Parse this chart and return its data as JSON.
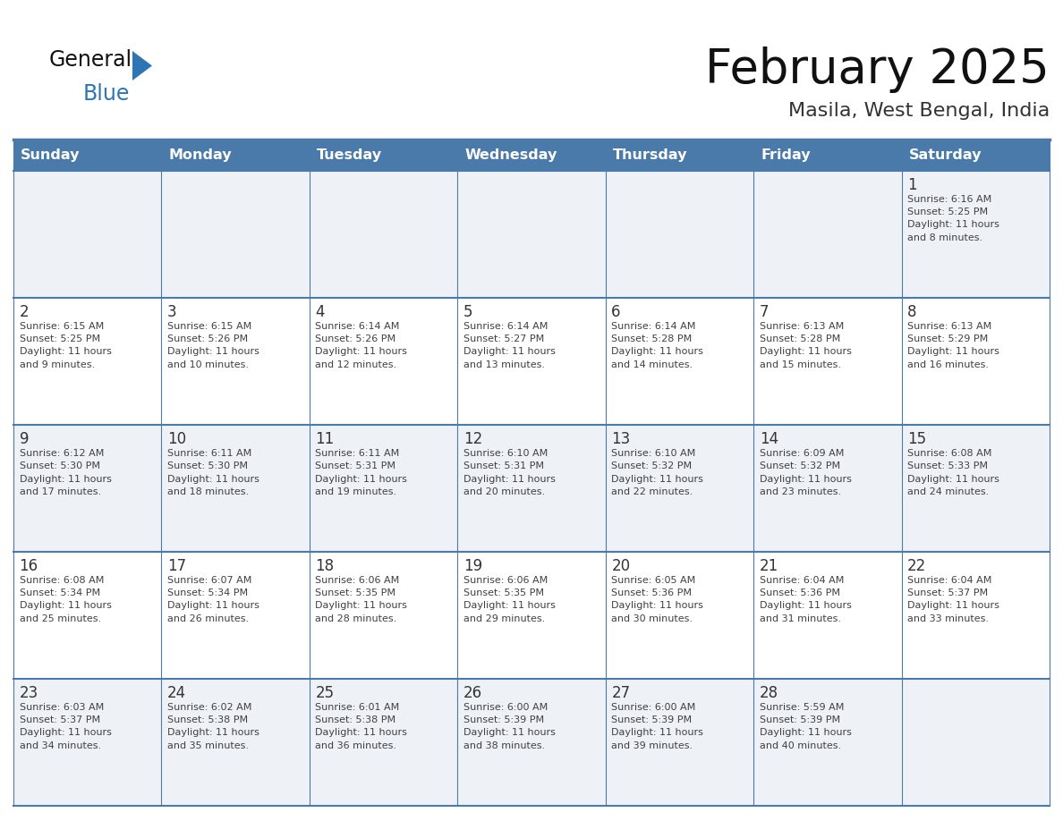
{
  "title": "February 2025",
  "subtitle": "Masila, West Bengal, India",
  "header_bg": "#4a7aaa",
  "header_text": "#ffffff",
  "row_bg_odd": "#eef2f7",
  "row_bg_even": "#ffffff",
  "border_color": "#4a7aaa",
  "day_headers": [
    "Sunday",
    "Monday",
    "Tuesday",
    "Wednesday",
    "Thursday",
    "Friday",
    "Saturday"
  ],
  "text_color": "#404040",
  "day_number_color": "#333333",
  "title_color": "#111111",
  "subtitle_color": "#333333",
  "logo_general_color": "#111111",
  "logo_blue_color": "#2e75b6",
  "logo_triangle_color": "#2e75b6",
  "calendar_data": {
    "1": {
      "day": 1,
      "col": 6,
      "row": 0,
      "sunrise": "6:16 AM",
      "sunset": "5:25 PM",
      "daylight_l1": "Daylight: 11 hours",
      "daylight_l2": "and 8 minutes."
    },
    "2": {
      "day": 2,
      "col": 0,
      "row": 1,
      "sunrise": "6:15 AM",
      "sunset": "5:25 PM",
      "daylight_l1": "Daylight: 11 hours",
      "daylight_l2": "and 9 minutes."
    },
    "3": {
      "day": 3,
      "col": 1,
      "row": 1,
      "sunrise": "6:15 AM",
      "sunset": "5:26 PM",
      "daylight_l1": "Daylight: 11 hours",
      "daylight_l2": "and 10 minutes."
    },
    "4": {
      "day": 4,
      "col": 2,
      "row": 1,
      "sunrise": "6:14 AM",
      "sunset": "5:26 PM",
      "daylight_l1": "Daylight: 11 hours",
      "daylight_l2": "and 12 minutes."
    },
    "5": {
      "day": 5,
      "col": 3,
      "row": 1,
      "sunrise": "6:14 AM",
      "sunset": "5:27 PM",
      "daylight_l1": "Daylight: 11 hours",
      "daylight_l2": "and 13 minutes."
    },
    "6": {
      "day": 6,
      "col": 4,
      "row": 1,
      "sunrise": "6:14 AM",
      "sunset": "5:28 PM",
      "daylight_l1": "Daylight: 11 hours",
      "daylight_l2": "and 14 minutes."
    },
    "7": {
      "day": 7,
      "col": 5,
      "row": 1,
      "sunrise": "6:13 AM",
      "sunset": "5:28 PM",
      "daylight_l1": "Daylight: 11 hours",
      "daylight_l2": "and 15 minutes."
    },
    "8": {
      "day": 8,
      "col": 6,
      "row": 1,
      "sunrise": "6:13 AM",
      "sunset": "5:29 PM",
      "daylight_l1": "Daylight: 11 hours",
      "daylight_l2": "and 16 minutes."
    },
    "9": {
      "day": 9,
      "col": 0,
      "row": 2,
      "sunrise": "6:12 AM",
      "sunset": "5:30 PM",
      "daylight_l1": "Daylight: 11 hours",
      "daylight_l2": "and 17 minutes."
    },
    "10": {
      "day": 10,
      "col": 1,
      "row": 2,
      "sunrise": "6:11 AM",
      "sunset": "5:30 PM",
      "daylight_l1": "Daylight: 11 hours",
      "daylight_l2": "and 18 minutes."
    },
    "11": {
      "day": 11,
      "col": 2,
      "row": 2,
      "sunrise": "6:11 AM",
      "sunset": "5:31 PM",
      "daylight_l1": "Daylight: 11 hours",
      "daylight_l2": "and 19 minutes."
    },
    "12": {
      "day": 12,
      "col": 3,
      "row": 2,
      "sunrise": "6:10 AM",
      "sunset": "5:31 PM",
      "daylight_l1": "Daylight: 11 hours",
      "daylight_l2": "and 20 minutes."
    },
    "13": {
      "day": 13,
      "col": 4,
      "row": 2,
      "sunrise": "6:10 AM",
      "sunset": "5:32 PM",
      "daylight_l1": "Daylight: 11 hours",
      "daylight_l2": "and 22 minutes."
    },
    "14": {
      "day": 14,
      "col": 5,
      "row": 2,
      "sunrise": "6:09 AM",
      "sunset": "5:32 PM",
      "daylight_l1": "Daylight: 11 hours",
      "daylight_l2": "and 23 minutes."
    },
    "15": {
      "day": 15,
      "col": 6,
      "row": 2,
      "sunrise": "6:08 AM",
      "sunset": "5:33 PM",
      "daylight_l1": "Daylight: 11 hours",
      "daylight_l2": "and 24 minutes."
    },
    "16": {
      "day": 16,
      "col": 0,
      "row": 3,
      "sunrise": "6:08 AM",
      "sunset": "5:34 PM",
      "daylight_l1": "Daylight: 11 hours",
      "daylight_l2": "and 25 minutes."
    },
    "17": {
      "day": 17,
      "col": 1,
      "row": 3,
      "sunrise": "6:07 AM",
      "sunset": "5:34 PM",
      "daylight_l1": "Daylight: 11 hours",
      "daylight_l2": "and 26 minutes."
    },
    "18": {
      "day": 18,
      "col": 2,
      "row": 3,
      "sunrise": "6:06 AM",
      "sunset": "5:35 PM",
      "daylight_l1": "Daylight: 11 hours",
      "daylight_l2": "and 28 minutes."
    },
    "19": {
      "day": 19,
      "col": 3,
      "row": 3,
      "sunrise": "6:06 AM",
      "sunset": "5:35 PM",
      "daylight_l1": "Daylight: 11 hours",
      "daylight_l2": "and 29 minutes."
    },
    "20": {
      "day": 20,
      "col": 4,
      "row": 3,
      "sunrise": "6:05 AM",
      "sunset": "5:36 PM",
      "daylight_l1": "Daylight: 11 hours",
      "daylight_l2": "and 30 minutes."
    },
    "21": {
      "day": 21,
      "col": 5,
      "row": 3,
      "sunrise": "6:04 AM",
      "sunset": "5:36 PM",
      "daylight_l1": "Daylight: 11 hours",
      "daylight_l2": "and 31 minutes."
    },
    "22": {
      "day": 22,
      "col": 6,
      "row": 3,
      "sunrise": "6:04 AM",
      "sunset": "5:37 PM",
      "daylight_l1": "Daylight: 11 hours",
      "daylight_l2": "and 33 minutes."
    },
    "23": {
      "day": 23,
      "col": 0,
      "row": 4,
      "sunrise": "6:03 AM",
      "sunset": "5:37 PM",
      "daylight_l1": "Daylight: 11 hours",
      "daylight_l2": "and 34 minutes."
    },
    "24": {
      "day": 24,
      "col": 1,
      "row": 4,
      "sunrise": "6:02 AM",
      "sunset": "5:38 PM",
      "daylight_l1": "Daylight: 11 hours",
      "daylight_l2": "and 35 minutes."
    },
    "25": {
      "day": 25,
      "col": 2,
      "row": 4,
      "sunrise": "6:01 AM",
      "sunset": "5:38 PM",
      "daylight_l1": "Daylight: 11 hours",
      "daylight_l2": "and 36 minutes."
    },
    "26": {
      "day": 26,
      "col": 3,
      "row": 4,
      "sunrise": "6:00 AM",
      "sunset": "5:39 PM",
      "daylight_l1": "Daylight: 11 hours",
      "daylight_l2": "and 38 minutes."
    },
    "27": {
      "day": 27,
      "col": 4,
      "row": 4,
      "sunrise": "6:00 AM",
      "sunset": "5:39 PM",
      "daylight_l1": "Daylight: 11 hours",
      "daylight_l2": "and 39 minutes."
    },
    "28": {
      "day": 28,
      "col": 5,
      "row": 4,
      "sunrise": "5:59 AM",
      "sunset": "5:39 PM",
      "daylight_l1": "Daylight: 11 hours",
      "daylight_l2": "and 40 minutes."
    }
  },
  "num_rows": 5,
  "num_cols": 7
}
